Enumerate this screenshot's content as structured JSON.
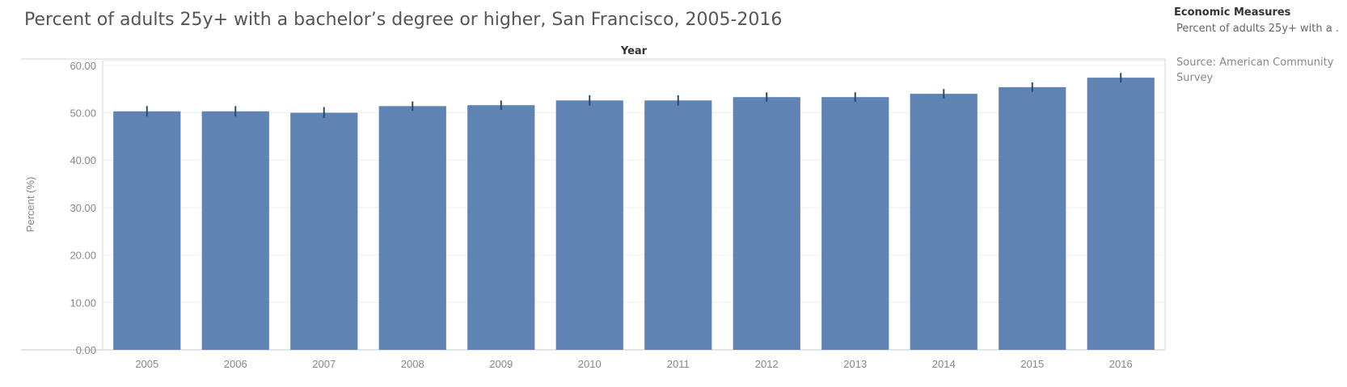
{
  "header": {
    "title": "Percent of adults 25y+ with a bachelor’s degree or higher, San Francisco, 2005-2016"
  },
  "legend": {
    "title": "Economic Measures",
    "item": "Percent of adults 25y+ with a .."
  },
  "source": "Source: American Community Survey",
  "chart_data": {
    "type": "bar",
    "title": "Percent of adults 25y+ with a bachelor’s degree or higher, San Francisco, 2005-2016",
    "column_header": "Year",
    "xlabel": "",
    "ylabel": "Percent (%)",
    "ylim": [
      0,
      61
    ],
    "yticks": [
      "0.00",
      "10.00",
      "20.00",
      "30.00",
      "40.00",
      "50.00",
      "60.00"
    ],
    "ytick_values": [
      0,
      10,
      20,
      30,
      40,
      50,
      60
    ],
    "categories": [
      "2005",
      "2006",
      "2007",
      "2008",
      "2009",
      "2010",
      "2011",
      "2012",
      "2013",
      "2014",
      "2015",
      "2016"
    ],
    "values": [
      50.3,
      50.3,
      50.0,
      51.4,
      51.6,
      52.6,
      52.6,
      53.3,
      53.3,
      54.0,
      55.4,
      57.4
    ],
    "error_low": [
      49.2,
      49.2,
      48.9,
      50.4,
      50.6,
      51.5,
      51.5,
      52.3,
      52.3,
      53.0,
      54.4,
      56.4
    ],
    "error_high": [
      51.4,
      51.4,
      51.2,
      52.4,
      52.6,
      53.7,
      53.7,
      54.3,
      54.3,
      55.0,
      56.4,
      58.4
    ],
    "grid": true,
    "bar_color": "#5f84b3",
    "error_color": "#2a4a72"
  }
}
